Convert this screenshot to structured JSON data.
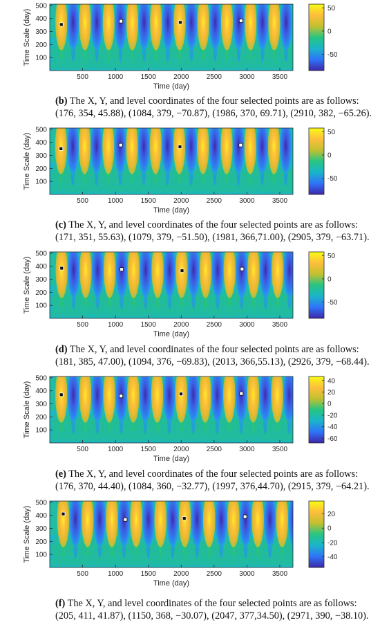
{
  "figure": {
    "panels": [
      {
        "id": "a",
        "chart_data": {
          "type": "heatmap",
          "xlabel": "Time (day)",
          "ylabel": "Time Scale (day)",
          "xlim": [
            0,
            3700
          ],
          "ylim": [
            0,
            510
          ],
          "xticks": [
            500,
            1000,
            1500,
            2000,
            2500,
            3000,
            3500
          ],
          "yticks": [
            100,
            200,
            300,
            400,
            500
          ],
          "colorbar": {
            "min": -85,
            "max": 58,
            "ticks": [
              50,
              0,
              -50
            ]
          },
          "colormap": [
            "#3e26a8",
            "#2f74f9",
            "#1ab5ca",
            "#27c582",
            "#c3c02f",
            "#fdbe3c",
            "#f9fb15"
          ],
          "period_days": 360,
          "first_peak_day": 176,
          "selected_points": [
            {
              "x": 176,
              "y": 354,
              "level": 45.88
            },
            {
              "x": 1084,
              "y": 379,
              "level": -70.87
            },
            {
              "x": 1986,
              "y": 370,
              "level": 69.71
            },
            {
              "x": 2910,
              "y": 382,
              "level": -65.26
            }
          ]
        }
      },
      {
        "id": "b",
        "chart_data": {
          "type": "heatmap",
          "xlabel": "Time (day)",
          "ylabel": "Time Scale (day)",
          "xlim": [
            0,
            3700
          ],
          "ylim": [
            0,
            510
          ],
          "xticks": [
            500,
            1000,
            1500,
            2000,
            2500,
            3000,
            3500
          ],
          "yticks": [
            100,
            200,
            300,
            400,
            500
          ],
          "colorbar": {
            "min": -85,
            "max": 58,
            "ticks": [
              50,
              0,
              -50
            ]
          },
          "colormap": [
            "#3e26a8",
            "#2f74f9",
            "#1ab5ca",
            "#27c582",
            "#c3c02f",
            "#fdbe3c",
            "#f9fb15"
          ],
          "period_days": 360,
          "first_peak_day": 171,
          "selected_points": [
            {
              "x": 171,
              "y": 351,
              "level": 55.63
            },
            {
              "x": 1079,
              "y": 379,
              "level": -51.5
            },
            {
              "x": 1981,
              "y": 366,
              "level": 71.0
            },
            {
              "x": 2905,
              "y": 379,
              "level": -63.71
            }
          ]
        }
      },
      {
        "id": "c",
        "chart_data": {
          "type": "heatmap",
          "xlabel": "Time (day)",
          "ylabel": "Time Scale (day)",
          "xlim": [
            0,
            3700
          ],
          "ylim": [
            0,
            510
          ],
          "xticks": [
            500,
            1000,
            1500,
            2000,
            2500,
            3000,
            3500
          ],
          "yticks": [
            100,
            200,
            300,
            400,
            500
          ],
          "colorbar": {
            "min": -85,
            "max": 58,
            "ticks": [
              50,
              0,
              -50
            ]
          },
          "colormap": [
            "#3e26a8",
            "#2f74f9",
            "#1ab5ca",
            "#27c582",
            "#c3c02f",
            "#fdbe3c",
            "#f9fb15"
          ],
          "period_days": 365,
          "first_peak_day": 181,
          "selected_points": [
            {
              "x": 181,
              "y": 385,
              "level": 47.0
            },
            {
              "x": 1094,
              "y": 376,
              "level": -69.83
            },
            {
              "x": 2013,
              "y": 366,
              "level": 55.13
            },
            {
              "x": 2926,
              "y": 379,
              "level": -68.44
            }
          ]
        }
      },
      {
        "id": "d",
        "chart_data": {
          "type": "heatmap",
          "xlabel": "Time (day)",
          "ylabel": "Time Scale (day)",
          "xlim": [
            0,
            3700
          ],
          "ylim": [
            0,
            510
          ],
          "xticks": [
            500,
            1000,
            1500,
            2000,
            2500,
            3000,
            3500
          ],
          "yticks": [
            100,
            200,
            300,
            400,
            500
          ],
          "colorbar": {
            "min": -68,
            "max": 47,
            "ticks": [
              40,
              20,
              0,
              -20,
              -40,
              -60
            ]
          },
          "colormap": [
            "#3e26a8",
            "#2f74f9",
            "#1ab5ca",
            "#27c582",
            "#c3c02f",
            "#fdbe3c",
            "#f9fb15"
          ],
          "period_days": 365,
          "first_peak_day": 176,
          "selected_points": [
            {
              "x": 176,
              "y": 370,
              "level": 44.4
            },
            {
              "x": 1084,
              "y": 360,
              "level": -32.77
            },
            {
              "x": 1997,
              "y": 376,
              "level": 44.7
            },
            {
              "x": 2915,
              "y": 379,
              "level": -64.21
            }
          ]
        }
      },
      {
        "id": "e",
        "chart_data": {
          "type": "heatmap",
          "xlabel": "Time (day)",
          "ylabel": "Time Scale (day)",
          "xlim": [
            0,
            3700
          ],
          "ylim": [
            0,
            510
          ],
          "xticks": [
            500,
            1000,
            1500,
            2000,
            2500,
            3000,
            3500
          ],
          "yticks": [
            100,
            200,
            300,
            400,
            500
          ],
          "colorbar": {
            "min": -55,
            "max": 38,
            "ticks": [
              20,
              0,
              -20,
              -40
            ]
          },
          "colormap": [
            "#3e26a8",
            "#2f74f9",
            "#1ab5ca",
            "#27c582",
            "#c3c02f",
            "#fdbe3c",
            "#f9fb15"
          ],
          "period_days": 370,
          "first_peak_day": 205,
          "selected_points": [
            {
              "x": 205,
              "y": 411,
              "level": 41.87
            },
            {
              "x": 1150,
              "y": 368,
              "level": -30.07
            },
            {
              "x": 2047,
              "y": 377,
              "level": 34.5
            },
            {
              "x": 2971,
              "y": 390,
              "level": -38.1
            }
          ]
        }
      }
    ],
    "captions": [
      {
        "label": "(b)",
        "text": " The X, Y, and level coordinates of the four selected points are as follows: (176, 354, 45.88), (1084, 379, −70.87), (1986, 370, 69.71), (2910, 382, −65.26)."
      },
      {
        "label": "(c)",
        "text": " The X, Y, and level coordinates of the four selected points are as follows: (171, 351, 55.63), (1079, 379, −51.50), (1981, 366,71.00), (2905, 379, −63.71)."
      },
      {
        "label": "(d)",
        "text": " The X, Y, and level coordinates of the four selected points are as follows: (181, 385, 47.00), (1094, 376, −69.83), (2013, 366,55.13), (2926, 379, −68.44)."
      },
      {
        "label": "(e)",
        "text": " The X, Y, and level coordinates of the four selected points are as follows: (176, 370, 44.40), (1084, 360, −32.77), (1997, 376,44.70), (2915, 379, −64.21)."
      },
      {
        "label": "(f)",
        "text": " The X, Y, and level coordinates of the four selected points are as follows: (205, 411, 41.87), (1150, 368, −30.07), (2047, 377,34.50), (2971, 390, −38.10)."
      }
    ]
  }
}
